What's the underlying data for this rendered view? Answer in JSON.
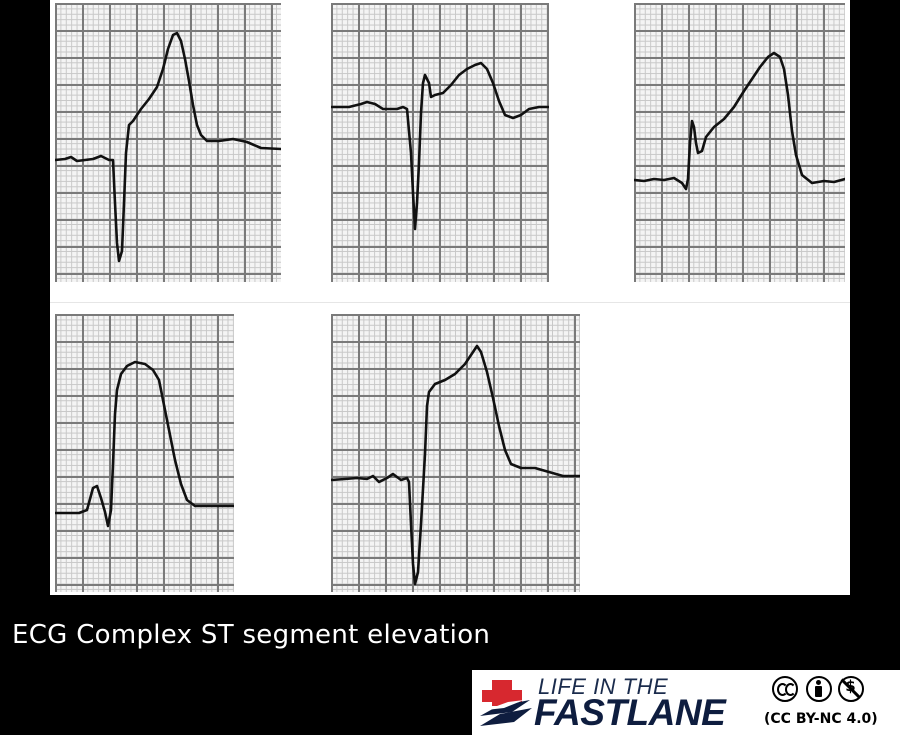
{
  "caption": "ECG Complex ST segment elevation",
  "logo": {
    "line1": "LIFE IN THE",
    "line2": "FASTLANE",
    "license": "(CC BY-NC 4.0)"
  },
  "license_icons": [
    "cc-icon",
    "by-icon",
    "nc-icon"
  ],
  "colors": {
    "background": "#000000",
    "panel": "#ffffff",
    "grid_major": "#7a7a7a",
    "grid_minor": "#c8c8c8",
    "trace": "#111111",
    "logo_red": "#d7282f",
    "logo_navy": "#0e1d3f"
  },
  "strips_count": 5
}
